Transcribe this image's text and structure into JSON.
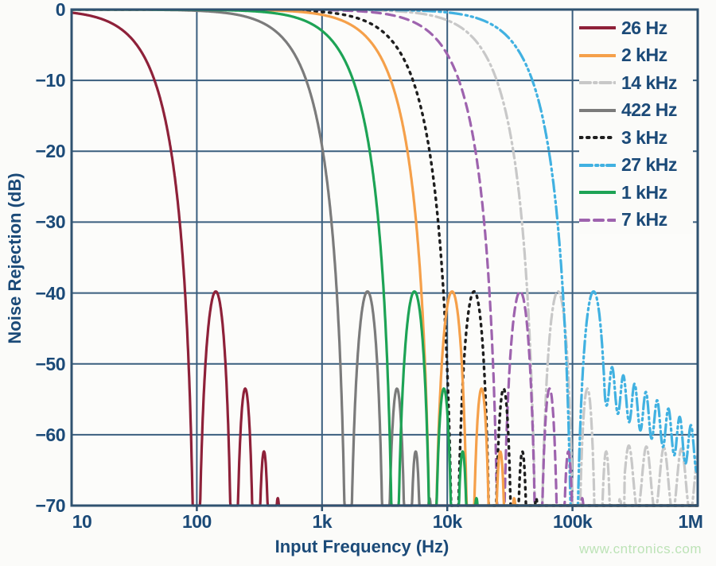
{
  "watermark": {
    "text": "www.cntronics.com"
  },
  "chart_data": {
    "type": "line",
    "title": "",
    "xlabel": "Input Frequency (Hz)",
    "ylabel": "Noise Rejection (dB)",
    "x_scale": "log",
    "x_range_hz": [
      10,
      1000000
    ],
    "y_range_db": [
      -70,
      0
    ],
    "grid": true,
    "legend_position": "top-right",
    "model": "sinc3 low-pass noise-rejection: dB = 60*log10(|sin(pi*f/null_hz)/(pi*f/null_hz)|), clipped at -70 dB",
    "sidelobe_peaks_db": [
      -40,
      -53,
      -62,
      -69
    ],
    "x_ticks": [
      {
        "label": "10",
        "hz": 10
      },
      {
        "label": "100",
        "hz": 100
      },
      {
        "label": "1k",
        "hz": 1000
      },
      {
        "label": "10k",
        "hz": 10000
      },
      {
        "label": "100k",
        "hz": 100000
      },
      {
        "label": "1M",
        "hz": 1000000
      }
    ],
    "y_ticks": [
      {
        "label": "0",
        "db": 0
      },
      {
        "label": "−10",
        "db": -10
      },
      {
        "label": "−20",
        "db": -20
      },
      {
        "label": "−30",
        "db": -30
      },
      {
        "label": "−40",
        "db": -40
      },
      {
        "label": "−50",
        "db": -50
      },
      {
        "label": "−60",
        "db": -60
      },
      {
        "label": "−70",
        "db": -70
      }
    ],
    "series": [
      {
        "label": "26 Hz",
        "f3db_hz": 26,
        "null_hz": 99,
        "color": "#8e2139",
        "dash": "solid"
      },
      {
        "label": "2 kHz",
        "f3db_hz": 2000,
        "null_hz": 7640,
        "color": "#f5a04a",
        "dash": "solid"
      },
      {
        "label": "14 kHz",
        "f3db_hz": 14000,
        "null_hz": 53500,
        "color": "#c8c8c8",
        "dash": "dashdot",
        "noise_floor": {
          "start_hz": 260000,
          "level_db": -66,
          "slope_db_per_decade": -1,
          "wiggle_db": 4.5,
          "period_decades": 0.14
        }
      },
      {
        "label": "422 Hz",
        "f3db_hz": 422,
        "null_hz": 1612,
        "color": "#7b7b7b",
        "dash": "solid"
      },
      {
        "label": "3 kHz",
        "f3db_hz": 3000,
        "null_hz": 11460,
        "color": "#1e1e1e",
        "dash": "dot"
      },
      {
        "label": "27 kHz",
        "f3db_hz": 27000,
        "null_hz": 103000,
        "color": "#41b1e1",
        "dash": "dashdotdot",
        "noise_floor": {
          "start_hz": 160000,
          "level_db": -52,
          "slope_db_per_decade": -13,
          "wiggle_db": 3,
          "period_decades": 0.09
        }
      },
      {
        "label": "1 kHz",
        "f3db_hz": 1000,
        "null_hz": 3820,
        "color": "#1da355",
        "dash": "solid"
      },
      {
        "label": "7 kHz",
        "f3db_hz": 7000,
        "null_hz": 26700,
        "color": "#9e63ae",
        "dash": "dashed"
      }
    ],
    "legend_order": [
      0,
      1,
      2,
      3,
      4,
      5,
      6,
      7
    ],
    "draw_order": [
      2,
      5,
      7,
      4,
      1,
      3,
      6,
      0
    ],
    "colors": {
      "axis": "#2f5270",
      "grid": "#3a5e7e",
      "plot_bg": "#fcfcfa",
      "tick_text": "#1b4a78",
      "watermark": "#bde3b7"
    }
  }
}
